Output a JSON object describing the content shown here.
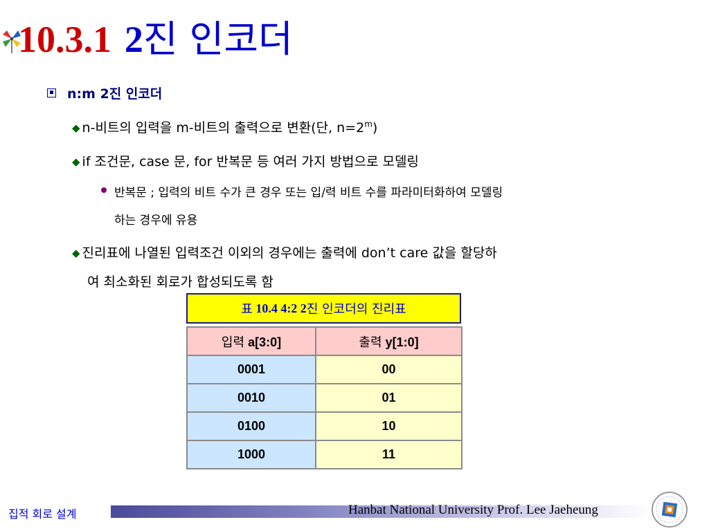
{
  "slide": {
    "title_number": "10.3.1",
    "title_prefix": "2",
    "title_text": "진 인코더"
  },
  "heading": {
    "label": "n:m 2진 인코더"
  },
  "bullets": {
    "b1_main": "n-비트의 입력을 m-비트의 출력으로 변환(단, n=2",
    "b1_sup": "m",
    "b1_end": ")",
    "b2": "if 조건문, case 문, for 반복문 등 여러 가지 방법으로 모델링",
    "b2_sub_line1": "반복문 ; 입력의 비트 수가 큰 경우 또는 입/력 비트 수를 파라미터화하여 모델링",
    "b2_sub_line2": "하는 경우에 유용",
    "b3_line1": "진리표에 나열된 입력조건 이외의 경우에는 출력에 don’t care 값을 할당하",
    "b3_line2": "여 최소화된 회로가 합성되도록 함"
  },
  "table": {
    "caption_prefix": "표",
    "caption_number": "10.4 4:2 2",
    "caption_text": "진 인코더의 진리표",
    "header_in_kor": "입력",
    "header_in": "a[3:0]",
    "header_out_kor": "출력",
    "header_out": "y[1:0]",
    "rows": [
      {
        "in": "0001",
        "out": "00"
      },
      {
        "in": "0010",
        "out": "01"
      },
      {
        "in": "0100",
        "out": "10"
      },
      {
        "in": "1000",
        "out": "11"
      }
    ]
  },
  "footer": {
    "course": "집적 회로 설계",
    "credit": "Hanbat National University Prof. Lee Jaeheung"
  },
  "colors": {
    "title_number": "#cc0000",
    "title_text": "#0000cc",
    "heading": "#000080",
    "diamond": "#006600",
    "sub_bullet": "#800080",
    "caption_bg": "#ffff00",
    "header_bg": "#ffcccc",
    "input_bg": "#cce6ff",
    "output_bg": "#ffffcc"
  },
  "icons": {
    "logo": "pinwheel-icon",
    "bullet_l1": "square-bullet-icon",
    "bullet_l2": "diamond-bullet-icon",
    "bullet_l3": "dot-bullet-icon",
    "seal": "university-seal-icon"
  }
}
